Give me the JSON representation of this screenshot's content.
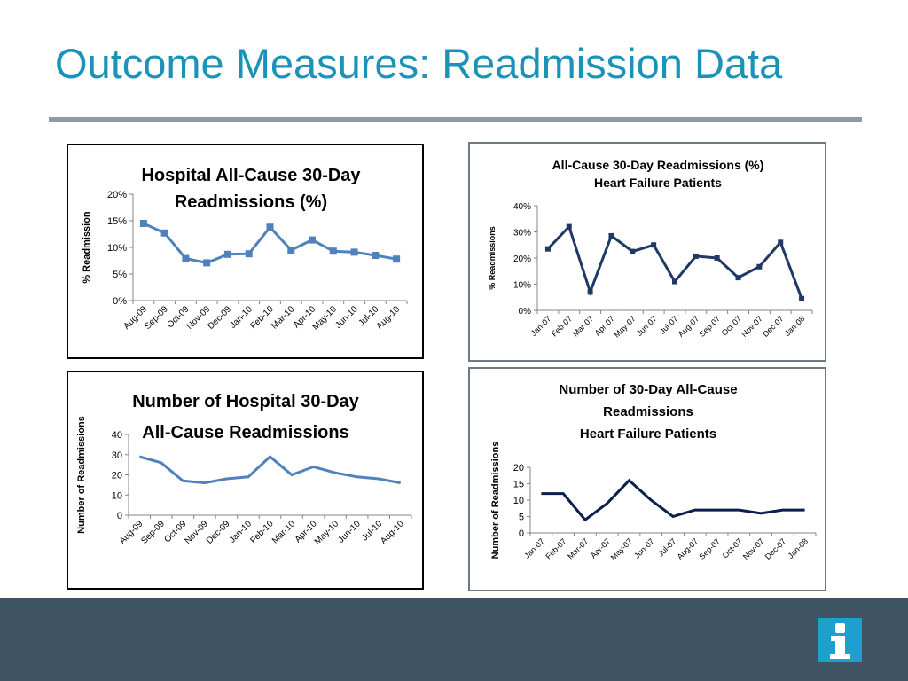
{
  "slide": {
    "title": "Outcome Measures: Readmission Data",
    "colors": {
      "title": "#1b93b8",
      "rule": "#8f9ba3",
      "footer": "#3e5462",
      "logo": "#1ea0cf"
    }
  },
  "logo": {
    "icon": "info-i-icon"
  },
  "chart_data": [
    {
      "id": "hospital-pct",
      "type": "line",
      "title": [
        "Hospital All-Cause 30-Day",
        "Readmissions (%)"
      ],
      "ylabel": "% Readmission",
      "xlabel": "",
      "categories": [
        "Aug-09",
        "Sep-09",
        "Oct-09",
        "Nov-09",
        "Dec-09",
        "Jan-10",
        "Feb-10",
        "Mar-10",
        "Apr-10",
        "May-10",
        "Jun-10",
        "Jul-10",
        "Aug-10"
      ],
      "series": [
        {
          "values": [
            14.5,
            12.7,
            7.9,
            7.1,
            8.7,
            8.8,
            13.8,
            9.5,
            11.4,
            9.3,
            9.1,
            8.5,
            7.8
          ],
          "color": "#4f81bd",
          "markers": true
        }
      ],
      "ylim": [
        0,
        20
      ],
      "yticks": [
        "0%",
        "5%",
        "10%",
        "15%",
        "20%"
      ],
      "grid": false
    },
    {
      "id": "hf-pct",
      "type": "line",
      "title": [
        "All-Cause 30-Day Readmissions (%)",
        "Heart Failure Patients"
      ],
      "ylabel": "% Readmissions",
      "xlabel": "",
      "categories": [
        "Jan-07",
        "Feb-07",
        "Mar-07",
        "Apr-07",
        "May-07",
        "Jun-07",
        "Jul-07",
        "Aug-07",
        "Sep-07",
        "Oct-07",
        "Nov-07",
        "Dec-07",
        "Jan-08"
      ],
      "series": [
        {
          "values": [
            23.5,
            32,
            7,
            28.5,
            22.5,
            25,
            11,
            20.7,
            20,
            12.5,
            16.7,
            26,
            4.5
          ],
          "color": "#1f3864",
          "markers": true
        }
      ],
      "ylim": [
        0,
        40
      ],
      "yticks": [
        "0%",
        "10%",
        "20%",
        "30%",
        "40%"
      ],
      "grid": false
    },
    {
      "id": "hospital-count",
      "type": "line",
      "title": [
        "Number of Hospital 30-Day",
        "All-Cause Readmissions"
      ],
      "ylabel": "Number of Readmissions",
      "xlabel": "",
      "categories": [
        "Aug-09",
        "Sep-09",
        "Oct-09",
        "Nov-09",
        "Dec-09",
        "Jan-10",
        "Feb-10",
        "Mar-10",
        "Apr-10",
        "May-10",
        "Jun-10",
        "Jul-10",
        "Aug-10"
      ],
      "series": [
        {
          "values": [
            29,
            26,
            17,
            16,
            18,
            19,
            29,
            20,
            24,
            21,
            19,
            18,
            16
          ],
          "color": "#4f81bd",
          "markers": false
        }
      ],
      "ylim": [
        0,
        40
      ],
      "yticks": [
        "0",
        "10",
        "20",
        "30",
        "40"
      ],
      "grid": false
    },
    {
      "id": "hf-count",
      "type": "line",
      "title": [
        "Number of 30-Day All-Cause",
        "Readmissions",
        "Heart Failure Patients"
      ],
      "ylabel": "Number of Readmissions",
      "xlabel": "",
      "categories": [
        "Jan-07",
        "Feb-07",
        "Mar-07",
        "Apr-07",
        "May-07",
        "Jun-07",
        "Jul-07",
        "Aug-07",
        "Sep-07",
        "Oct-07",
        "Nov-07",
        "Dec-07",
        "Jan-08"
      ],
      "series": [
        {
          "values": [
            12,
            12,
            4,
            9,
            16,
            10,
            5,
            7,
            7,
            7,
            6,
            7,
            7
          ],
          "color": "#0b1f4d",
          "markers": false
        }
      ],
      "ylim": [
        0,
        20
      ],
      "yticks": [
        "0",
        "5",
        "10",
        "15",
        "20"
      ],
      "grid": false
    }
  ]
}
